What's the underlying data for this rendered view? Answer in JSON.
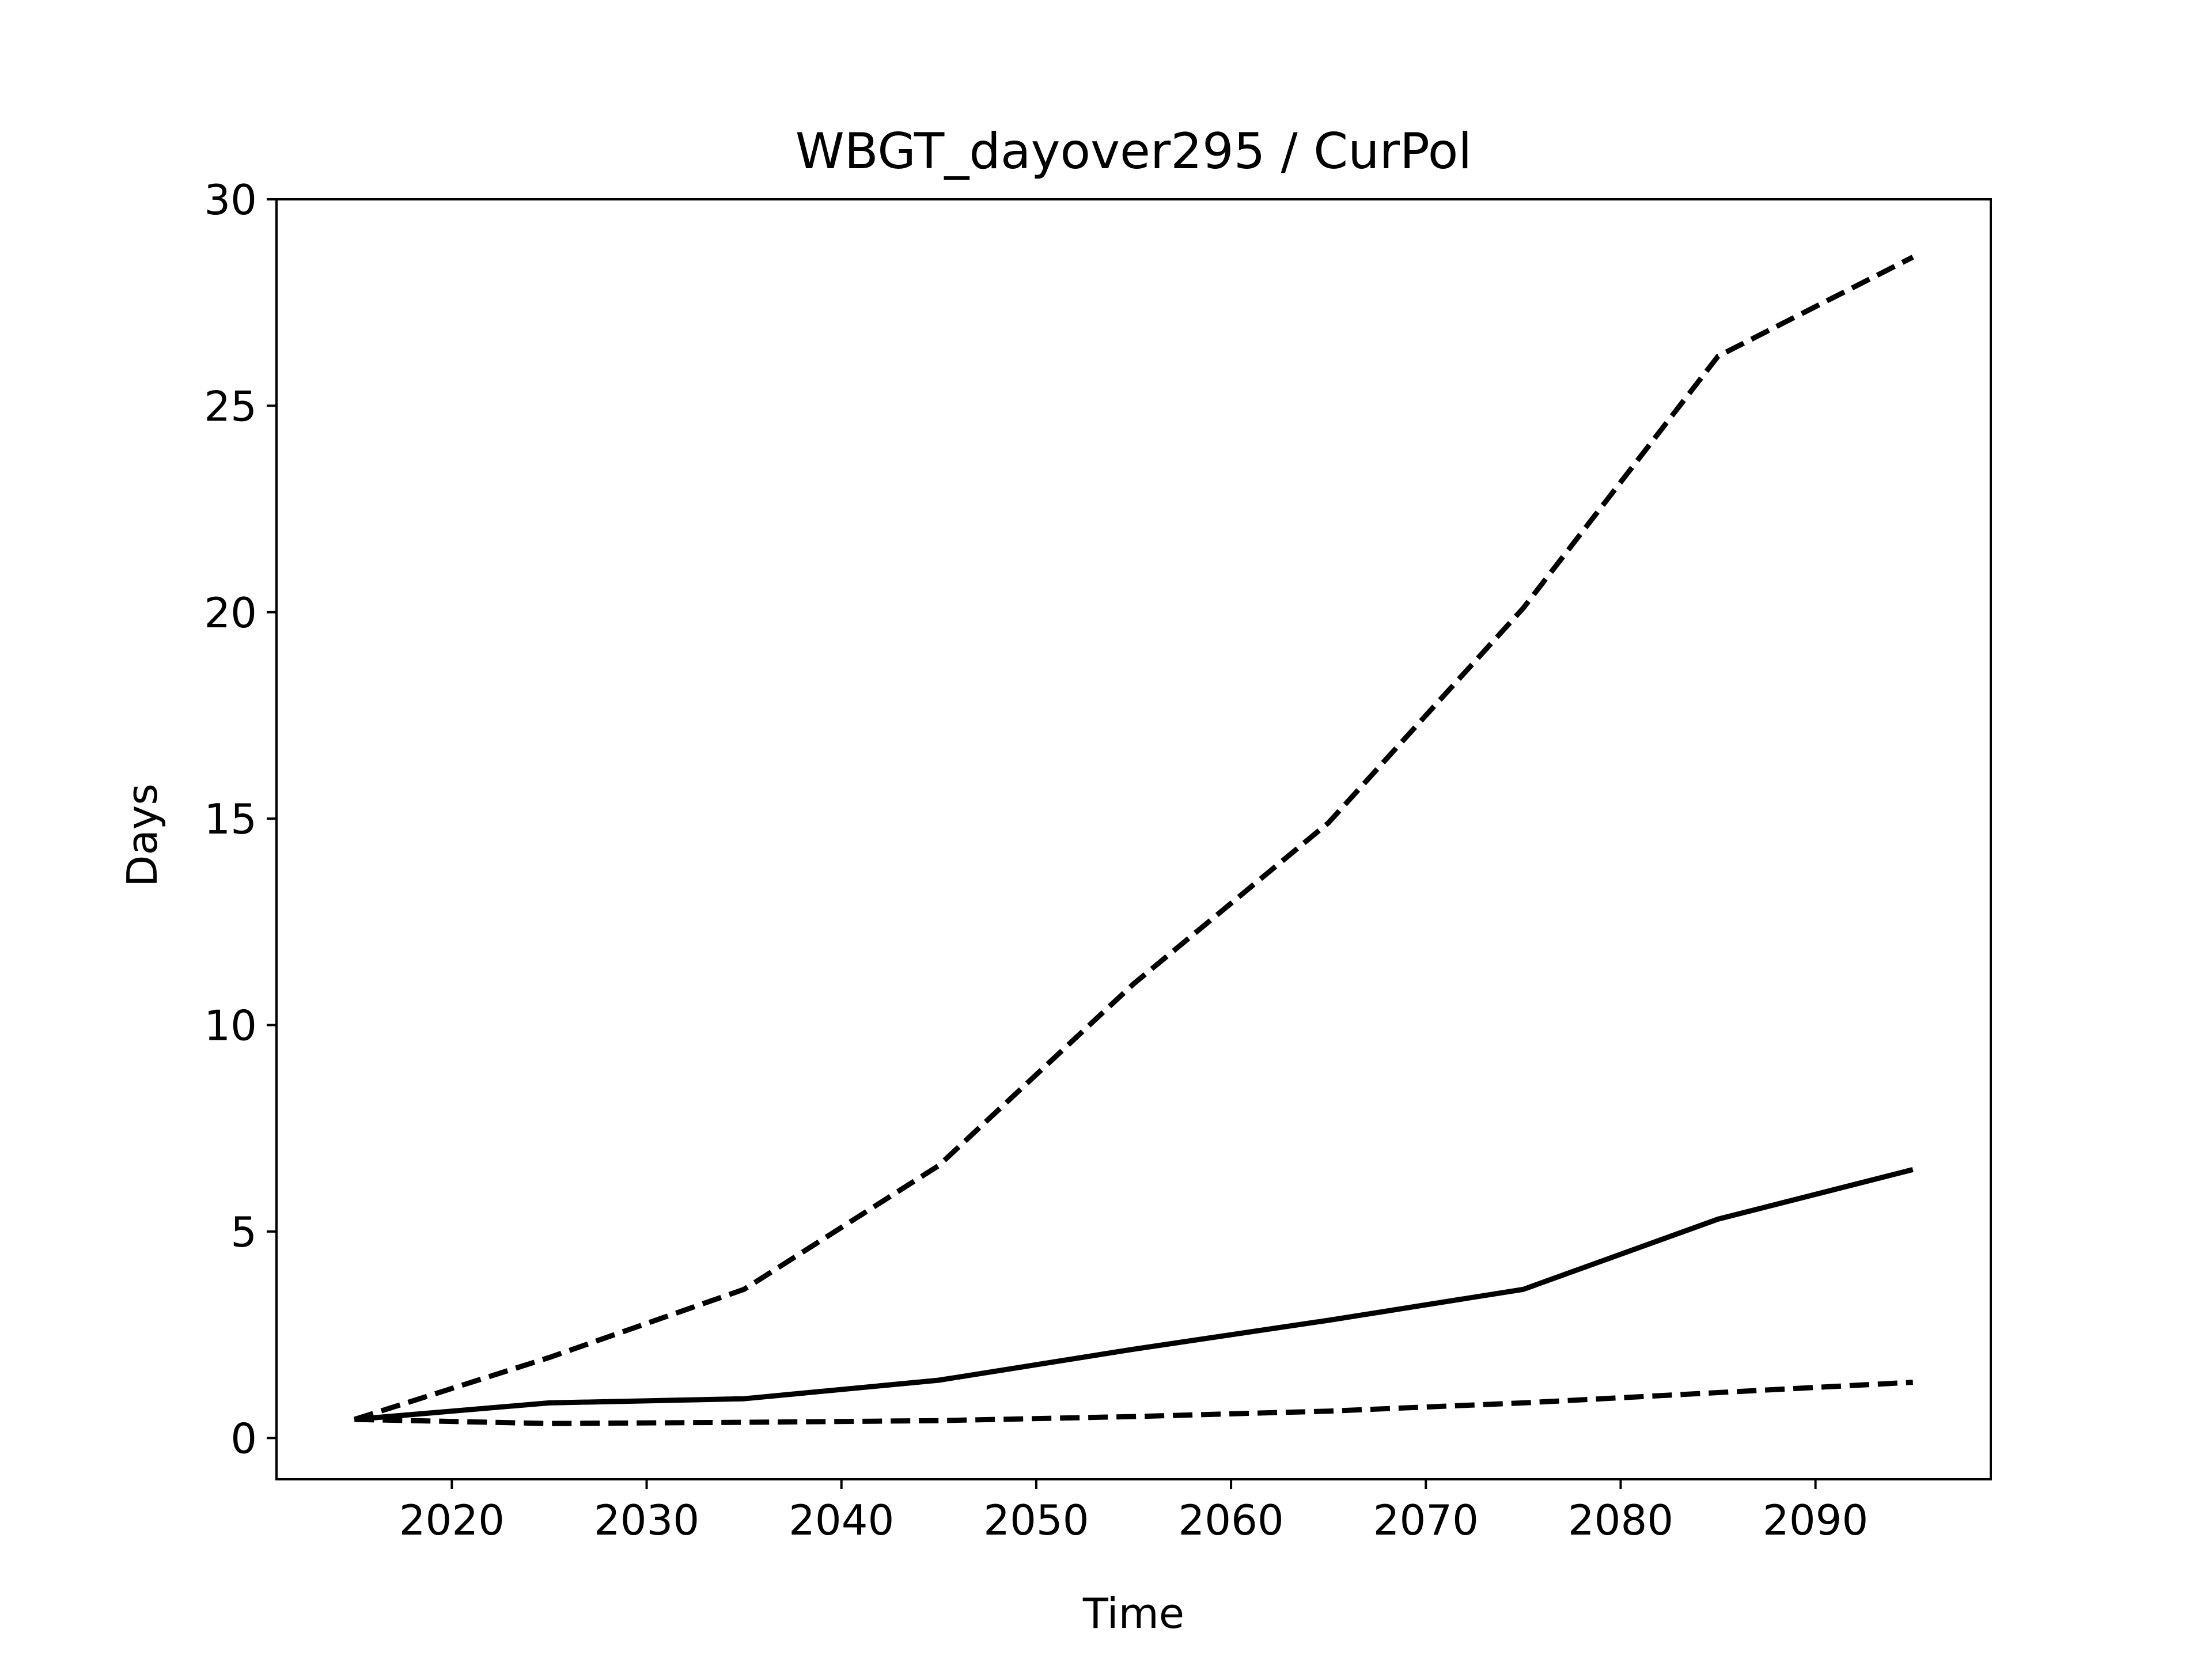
{
  "chart_data": {
    "type": "line",
    "title": "WBGT_dayover295 / CurPol",
    "xlabel": "Time",
    "ylabel": "Days",
    "xlim": [
      2011,
      2099
    ],
    "ylim": [
      -1,
      30
    ],
    "xticks": [
      2020,
      2030,
      2040,
      2050,
      2060,
      2070,
      2080,
      2090
    ],
    "yticks": [
      0,
      5,
      10,
      15,
      20,
      25,
      30
    ],
    "grid": false,
    "colors": {
      "line": "#000000",
      "frame": "#000000",
      "background": "#ffffff"
    },
    "x": [
      2015,
      2025,
      2035,
      2045,
      2055,
      2065,
      2075,
      2085,
      2095
    ],
    "series": [
      {
        "style": "solid",
        "values": [
          0.45,
          0.85,
          0.95,
          1.4,
          2.15,
          2.85,
          3.6,
          5.3,
          6.5
        ]
      },
      {
        "style": "dashed",
        "values": [
          0.45,
          1.95,
          3.6,
          6.6,
          11.0,
          14.9,
          20.1,
          26.2,
          28.6
        ]
      },
      {
        "style": "dashed",
        "values": [
          0.45,
          0.35,
          0.38,
          0.42,
          0.52,
          0.65,
          0.85,
          1.1,
          1.35
        ]
      }
    ]
  }
}
